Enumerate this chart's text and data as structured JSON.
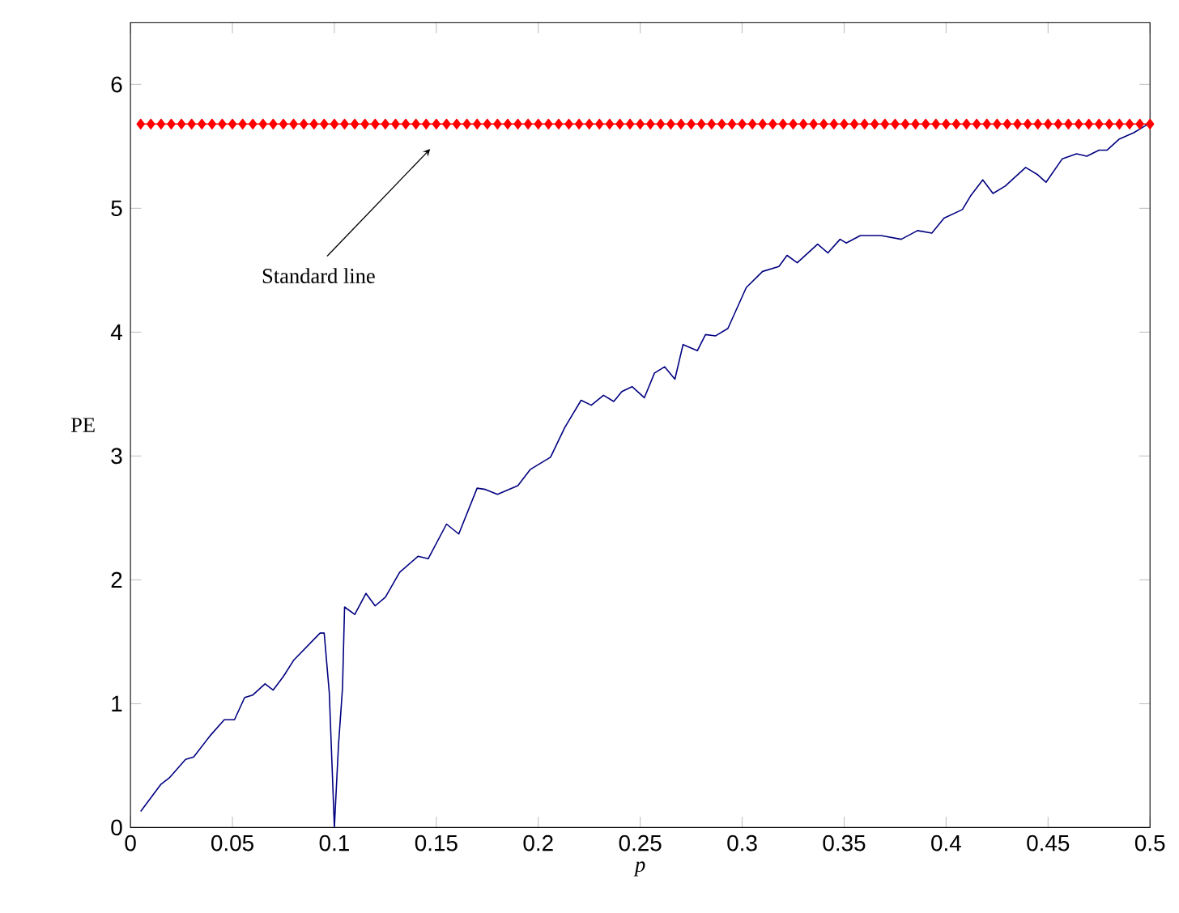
{
  "chart_data": {
    "type": "line",
    "xlabel": "p",
    "ylabel": "PE",
    "xlim": [
      0,
      0.5
    ],
    "ylim": [
      0,
      6.5
    ],
    "xticks": [
      0,
      0.05,
      0.1,
      0.15,
      0.2,
      0.25,
      0.3,
      0.35,
      0.4,
      0.45,
      0.5
    ],
    "yticks": [
      0,
      1,
      2,
      3,
      4,
      5,
      6
    ],
    "grid": false,
    "legend": false,
    "annotations": [
      "Standard line"
    ],
    "series": [
      {
        "color": "#ff0000",
        "marker": "diamond",
        "x": [
          0.005,
          0.01,
          0.015,
          0.02,
          0.025,
          0.03,
          0.035,
          0.04,
          0.045,
          0.05,
          0.055,
          0.06,
          0.065,
          0.07,
          0.075,
          0.08,
          0.085,
          0.09,
          0.095,
          0.1,
          0.105,
          0.11,
          0.115,
          0.12,
          0.125,
          0.13,
          0.135,
          0.14,
          0.145,
          0.15,
          0.155,
          0.16,
          0.165,
          0.17,
          0.175,
          0.18,
          0.185,
          0.19,
          0.195,
          0.2,
          0.205,
          0.21,
          0.215,
          0.22,
          0.225,
          0.23,
          0.235,
          0.24,
          0.245,
          0.25,
          0.255,
          0.26,
          0.265,
          0.27,
          0.275,
          0.28,
          0.285,
          0.29,
          0.295,
          0.3,
          0.305,
          0.31,
          0.315,
          0.32,
          0.325,
          0.33,
          0.335,
          0.34,
          0.345,
          0.35,
          0.355,
          0.36,
          0.365,
          0.37,
          0.375,
          0.38,
          0.385,
          0.39,
          0.395,
          0.4,
          0.405,
          0.41,
          0.415,
          0.42,
          0.425,
          0.43,
          0.435,
          0.44,
          0.445,
          0.45,
          0.455,
          0.46,
          0.465,
          0.47,
          0.475,
          0.48,
          0.485,
          0.49,
          0.495,
          0.5
        ],
        "values": [
          5.68,
          5.68,
          5.68,
          5.68,
          5.68,
          5.68,
          5.68,
          5.68,
          5.68,
          5.68,
          5.68,
          5.68,
          5.68,
          5.68,
          5.68,
          5.68,
          5.68,
          5.68,
          5.68,
          5.68,
          5.68,
          5.68,
          5.68,
          5.68,
          5.68,
          5.68,
          5.68,
          5.68,
          5.68,
          5.68,
          5.68,
          5.68,
          5.68,
          5.68,
          5.68,
          5.68,
          5.68,
          5.68,
          5.68,
          5.68,
          5.68,
          5.68,
          5.68,
          5.68,
          5.68,
          5.68,
          5.68,
          5.68,
          5.68,
          5.68,
          5.68,
          5.68,
          5.68,
          5.68,
          5.68,
          5.68,
          5.68,
          5.68,
          5.68,
          5.68,
          5.68,
          5.68,
          5.68,
          5.68,
          5.68,
          5.68,
          5.68,
          5.68,
          5.68,
          5.68,
          5.68,
          5.68,
          5.68,
          5.68,
          5.68,
          5.68,
          5.68,
          5.68,
          5.68,
          5.68,
          5.68,
          5.68,
          5.68,
          5.68,
          5.68,
          5.68,
          5.68,
          5.68,
          5.68,
          5.68,
          5.68,
          5.68,
          5.68,
          5.68,
          5.68,
          5.68,
          5.68,
          5.68,
          5.68,
          5.68
        ]
      },
      {
        "color": "#000080",
        "marker": "none",
        "x": [
          0.005,
          0.015,
          0.019,
          0.027,
          0.031,
          0.039,
          0.046,
          0.051,
          0.056,
          0.06,
          0.066,
          0.07,
          0.075,
          0.08,
          0.093,
          0.095,
          0.0975,
          0.099,
          0.1,
          0.102,
          0.104,
          0.105,
          0.11,
          0.1155,
          0.12,
          0.125,
          0.132,
          0.141,
          0.146,
          0.155,
          0.161,
          0.17,
          0.174,
          0.18,
          0.19,
          0.196,
          0.206,
          0.213,
          0.221,
          0.226,
          0.232,
          0.237,
          0.241,
          0.246,
          0.252,
          0.257,
          0.262,
          0.267,
          0.271,
          0.278,
          0.282,
          0.287,
          0.293,
          0.302,
          0.31,
          0.318,
          0.322,
          0.327,
          0.337,
          0.342,
          0.348,
          0.351,
          0.358,
          0.368,
          0.378,
          0.386,
          0.393,
          0.399,
          0.408,
          0.412,
          0.418,
          0.423,
          0.429,
          0.439,
          0.445,
          0.449,
          0.457,
          0.464,
          0.469,
          0.475,
          0.479,
          0.485,
          0.492,
          0.498,
          0.5
        ],
        "values": [
          0.13,
          0.35,
          0.4,
          0.55,
          0.57,
          0.74,
          0.87,
          0.87,
          1.05,
          1.07,
          1.16,
          1.11,
          1.22,
          1.35,
          1.57,
          1.57,
          1.09,
          0.44,
          0.0,
          0.66,
          1.13,
          1.78,
          1.72,
          1.89,
          1.79,
          1.86,
          2.06,
          2.19,
          2.17,
          2.45,
          2.37,
          2.74,
          2.73,
          2.69,
          2.76,
          2.89,
          2.99,
          3.23,
          3.45,
          3.41,
          3.49,
          3.44,
          3.52,
          3.56,
          3.47,
          3.67,
          3.72,
          3.62,
          3.9,
          3.85,
          3.98,
          3.97,
          4.03,
          4.36,
          4.49,
          4.53,
          4.62,
          4.56,
          4.71,
          4.64,
          4.75,
          4.72,
          4.78,
          4.78,
          4.75,
          4.82,
          4.8,
          4.92,
          4.99,
          5.1,
          5.23,
          5.12,
          5.18,
          5.33,
          5.27,
          5.21,
          5.4,
          5.44,
          5.42,
          5.47,
          5.47,
          5.56,
          5.61,
          5.67,
          5.68
        ]
      }
    ]
  }
}
